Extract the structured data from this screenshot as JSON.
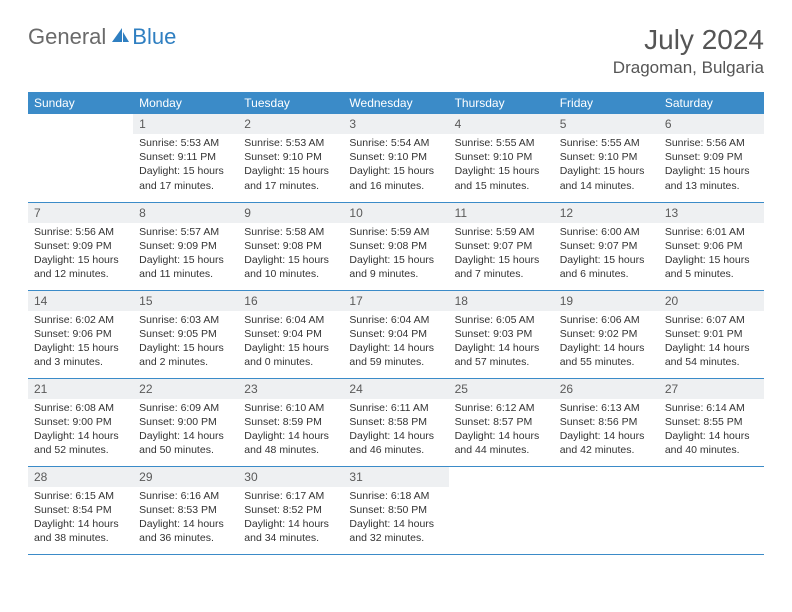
{
  "brand": {
    "part1": "General",
    "part2": "Blue"
  },
  "title": "July 2024",
  "location": "Dragoman, Bulgaria",
  "colors": {
    "header_bg": "#3b8bc8",
    "header_text": "#ffffff",
    "daynum_bg": "#eef0f2",
    "border": "#3b8bc8",
    "brand_gray": "#6a6a6a",
    "brand_blue": "#2f7fc1"
  },
  "weekdays": [
    "Sunday",
    "Monday",
    "Tuesday",
    "Wednesday",
    "Thursday",
    "Friday",
    "Saturday"
  ],
  "weeks": [
    [
      {
        "num": "",
        "sunrise": "",
        "sunset": "",
        "daylight": ""
      },
      {
        "num": "1",
        "sunrise": "Sunrise: 5:53 AM",
        "sunset": "Sunset: 9:11 PM",
        "daylight": "Daylight: 15 hours and 17 minutes."
      },
      {
        "num": "2",
        "sunrise": "Sunrise: 5:53 AM",
        "sunset": "Sunset: 9:10 PM",
        "daylight": "Daylight: 15 hours and 17 minutes."
      },
      {
        "num": "3",
        "sunrise": "Sunrise: 5:54 AM",
        "sunset": "Sunset: 9:10 PM",
        "daylight": "Daylight: 15 hours and 16 minutes."
      },
      {
        "num": "4",
        "sunrise": "Sunrise: 5:55 AM",
        "sunset": "Sunset: 9:10 PM",
        "daylight": "Daylight: 15 hours and 15 minutes."
      },
      {
        "num": "5",
        "sunrise": "Sunrise: 5:55 AM",
        "sunset": "Sunset: 9:10 PM",
        "daylight": "Daylight: 15 hours and 14 minutes."
      },
      {
        "num": "6",
        "sunrise": "Sunrise: 5:56 AM",
        "sunset": "Sunset: 9:09 PM",
        "daylight": "Daylight: 15 hours and 13 minutes."
      }
    ],
    [
      {
        "num": "7",
        "sunrise": "Sunrise: 5:56 AM",
        "sunset": "Sunset: 9:09 PM",
        "daylight": "Daylight: 15 hours and 12 minutes."
      },
      {
        "num": "8",
        "sunrise": "Sunrise: 5:57 AM",
        "sunset": "Sunset: 9:09 PM",
        "daylight": "Daylight: 15 hours and 11 minutes."
      },
      {
        "num": "9",
        "sunrise": "Sunrise: 5:58 AM",
        "sunset": "Sunset: 9:08 PM",
        "daylight": "Daylight: 15 hours and 10 minutes."
      },
      {
        "num": "10",
        "sunrise": "Sunrise: 5:59 AM",
        "sunset": "Sunset: 9:08 PM",
        "daylight": "Daylight: 15 hours and 9 minutes."
      },
      {
        "num": "11",
        "sunrise": "Sunrise: 5:59 AM",
        "sunset": "Sunset: 9:07 PM",
        "daylight": "Daylight: 15 hours and 7 minutes."
      },
      {
        "num": "12",
        "sunrise": "Sunrise: 6:00 AM",
        "sunset": "Sunset: 9:07 PM",
        "daylight": "Daylight: 15 hours and 6 minutes."
      },
      {
        "num": "13",
        "sunrise": "Sunrise: 6:01 AM",
        "sunset": "Sunset: 9:06 PM",
        "daylight": "Daylight: 15 hours and 5 minutes."
      }
    ],
    [
      {
        "num": "14",
        "sunrise": "Sunrise: 6:02 AM",
        "sunset": "Sunset: 9:06 PM",
        "daylight": "Daylight: 15 hours and 3 minutes."
      },
      {
        "num": "15",
        "sunrise": "Sunrise: 6:03 AM",
        "sunset": "Sunset: 9:05 PM",
        "daylight": "Daylight: 15 hours and 2 minutes."
      },
      {
        "num": "16",
        "sunrise": "Sunrise: 6:04 AM",
        "sunset": "Sunset: 9:04 PM",
        "daylight": "Daylight: 15 hours and 0 minutes."
      },
      {
        "num": "17",
        "sunrise": "Sunrise: 6:04 AM",
        "sunset": "Sunset: 9:04 PM",
        "daylight": "Daylight: 14 hours and 59 minutes."
      },
      {
        "num": "18",
        "sunrise": "Sunrise: 6:05 AM",
        "sunset": "Sunset: 9:03 PM",
        "daylight": "Daylight: 14 hours and 57 minutes."
      },
      {
        "num": "19",
        "sunrise": "Sunrise: 6:06 AM",
        "sunset": "Sunset: 9:02 PM",
        "daylight": "Daylight: 14 hours and 55 minutes."
      },
      {
        "num": "20",
        "sunrise": "Sunrise: 6:07 AM",
        "sunset": "Sunset: 9:01 PM",
        "daylight": "Daylight: 14 hours and 54 minutes."
      }
    ],
    [
      {
        "num": "21",
        "sunrise": "Sunrise: 6:08 AM",
        "sunset": "Sunset: 9:00 PM",
        "daylight": "Daylight: 14 hours and 52 minutes."
      },
      {
        "num": "22",
        "sunrise": "Sunrise: 6:09 AM",
        "sunset": "Sunset: 9:00 PM",
        "daylight": "Daylight: 14 hours and 50 minutes."
      },
      {
        "num": "23",
        "sunrise": "Sunrise: 6:10 AM",
        "sunset": "Sunset: 8:59 PM",
        "daylight": "Daylight: 14 hours and 48 minutes."
      },
      {
        "num": "24",
        "sunrise": "Sunrise: 6:11 AM",
        "sunset": "Sunset: 8:58 PM",
        "daylight": "Daylight: 14 hours and 46 minutes."
      },
      {
        "num": "25",
        "sunrise": "Sunrise: 6:12 AM",
        "sunset": "Sunset: 8:57 PM",
        "daylight": "Daylight: 14 hours and 44 minutes."
      },
      {
        "num": "26",
        "sunrise": "Sunrise: 6:13 AM",
        "sunset": "Sunset: 8:56 PM",
        "daylight": "Daylight: 14 hours and 42 minutes."
      },
      {
        "num": "27",
        "sunrise": "Sunrise: 6:14 AM",
        "sunset": "Sunset: 8:55 PM",
        "daylight": "Daylight: 14 hours and 40 minutes."
      }
    ],
    [
      {
        "num": "28",
        "sunrise": "Sunrise: 6:15 AM",
        "sunset": "Sunset: 8:54 PM",
        "daylight": "Daylight: 14 hours and 38 minutes."
      },
      {
        "num": "29",
        "sunrise": "Sunrise: 6:16 AM",
        "sunset": "Sunset: 8:53 PM",
        "daylight": "Daylight: 14 hours and 36 minutes."
      },
      {
        "num": "30",
        "sunrise": "Sunrise: 6:17 AM",
        "sunset": "Sunset: 8:52 PM",
        "daylight": "Daylight: 14 hours and 34 minutes."
      },
      {
        "num": "31",
        "sunrise": "Sunrise: 6:18 AM",
        "sunset": "Sunset: 8:50 PM",
        "daylight": "Daylight: 14 hours and 32 minutes."
      },
      {
        "num": "",
        "sunrise": "",
        "sunset": "",
        "daylight": ""
      },
      {
        "num": "",
        "sunrise": "",
        "sunset": "",
        "daylight": ""
      },
      {
        "num": "",
        "sunrise": "",
        "sunset": "",
        "daylight": ""
      }
    ]
  ]
}
